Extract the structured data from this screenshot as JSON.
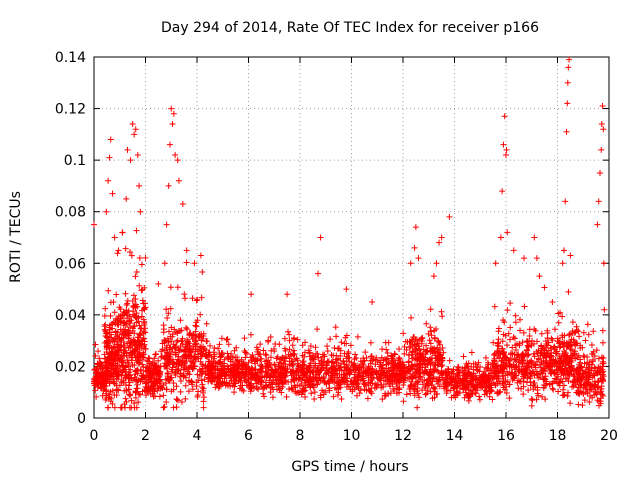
{
  "chart_data": {
    "type": "scatter",
    "title": "Day 294 of 2014, Rate Of TEC Index for receiver p166",
    "xlabel": "GPS time / hours",
    "ylabel": "ROTI / TECUs",
    "xlim": [
      0,
      20
    ],
    "ylim": [
      0,
      0.14
    ],
    "xticks": [
      "0",
      "2",
      "4",
      "6",
      "8",
      "10",
      "12",
      "14",
      "16",
      "18",
      "20"
    ],
    "yticks": [
      "0",
      "0.02",
      "0.04",
      "0.06",
      "0.08",
      "0.1",
      "0.12",
      "0.14"
    ],
    "grid": true,
    "marker": "+",
    "series_color": "#ff0000",
    "series": [
      {
        "name": "ROTI",
        "segments": [
          {
            "x_start": 0.0,
            "x_end": 0.4,
            "base": 0.016,
            "spread": 0.006,
            "count": 90
          },
          {
            "x_start": 0.4,
            "x_end": 1.0,
            "base": 0.022,
            "spread": 0.016,
            "count": 220
          },
          {
            "x_start": 1.0,
            "x_end": 2.0,
            "base": 0.025,
            "spread": 0.02,
            "count": 320
          },
          {
            "x_start": 2.0,
            "x_end": 2.6,
            "base": 0.016,
            "spread": 0.007,
            "count": 130
          },
          {
            "x_start": 2.6,
            "x_end": 4.4,
            "base": 0.022,
            "spread": 0.015,
            "count": 330
          },
          {
            "x_start": 4.4,
            "x_end": 6.0,
            "base": 0.018,
            "spread": 0.007,
            "count": 280
          },
          {
            "x_start": 6.0,
            "x_end": 12.0,
            "base": 0.017,
            "spread": 0.008,
            "count": 900
          },
          {
            "x_start": 12.0,
            "x_end": 13.6,
            "base": 0.02,
            "spread": 0.012,
            "count": 320
          },
          {
            "x_start": 13.6,
            "x_end": 15.5,
            "base": 0.014,
            "spread": 0.006,
            "count": 280
          },
          {
            "x_start": 15.5,
            "x_end": 18.0,
            "base": 0.02,
            "spread": 0.012,
            "count": 420
          },
          {
            "x_start": 18.0,
            "x_end": 18.7,
            "base": 0.022,
            "spread": 0.012,
            "count": 160
          },
          {
            "x_start": 18.7,
            "x_end": 19.8,
            "base": 0.016,
            "spread": 0.01,
            "count": 200
          }
        ],
        "spikes": [
          {
            "x": 0.0,
            "y": 0.075
          },
          {
            "x": 0.48,
            "y": 0.08
          },
          {
            "x": 0.55,
            "y": 0.092
          },
          {
            "x": 0.6,
            "y": 0.101
          },
          {
            "x": 0.65,
            "y": 0.108
          },
          {
            "x": 0.72,
            "y": 0.087
          },
          {
            "x": 0.8,
            "y": 0.07
          },
          {
            "x": 0.95,
            "y": 0.065
          },
          {
            "x": 1.1,
            "y": 0.072
          },
          {
            "x": 1.25,
            "y": 0.085
          },
          {
            "x": 1.3,
            "y": 0.104
          },
          {
            "x": 1.42,
            "y": 0.1
          },
          {
            "x": 1.5,
            "y": 0.114
          },
          {
            "x": 1.56,
            "y": 0.11
          },
          {
            "x": 1.62,
            "y": 0.112
          },
          {
            "x": 1.7,
            "y": 0.102
          },
          {
            "x": 1.75,
            "y": 0.09
          },
          {
            "x": 1.8,
            "y": 0.08
          },
          {
            "x": 2.5,
            "y": 0.052
          },
          {
            "x": 2.75,
            "y": 0.06
          },
          {
            "x": 2.82,
            "y": 0.075
          },
          {
            "x": 2.9,
            "y": 0.09
          },
          {
            "x": 2.95,
            "y": 0.106
          },
          {
            "x": 3.0,
            "y": 0.12
          },
          {
            "x": 3.05,
            "y": 0.114
          },
          {
            "x": 3.1,
            "y": 0.118
          },
          {
            "x": 3.15,
            "y": 0.102
          },
          {
            "x": 3.25,
            "y": 0.1
          },
          {
            "x": 3.3,
            "y": 0.092
          },
          {
            "x": 3.45,
            "y": 0.083
          },
          {
            "x": 3.6,
            "y": 0.065
          },
          {
            "x": 3.9,
            "y": 0.06
          },
          {
            "x": 4.15,
            "y": 0.063
          },
          {
            "x": 6.1,
            "y": 0.048
          },
          {
            "x": 7.5,
            "y": 0.048
          },
          {
            "x": 8.7,
            "y": 0.056
          },
          {
            "x": 8.8,
            "y": 0.07
          },
          {
            "x": 9.8,
            "y": 0.05
          },
          {
            "x": 10.8,
            "y": 0.045
          },
          {
            "x": 12.3,
            "y": 0.06
          },
          {
            "x": 12.45,
            "y": 0.066
          },
          {
            "x": 12.5,
            "y": 0.074
          },
          {
            "x": 12.6,
            "y": 0.062
          },
          {
            "x": 13.2,
            "y": 0.055
          },
          {
            "x": 13.3,
            "y": 0.06
          },
          {
            "x": 13.4,
            "y": 0.068
          },
          {
            "x": 13.5,
            "y": 0.07
          },
          {
            "x": 13.8,
            "y": 0.078
          },
          {
            "x": 15.6,
            "y": 0.06
          },
          {
            "x": 15.8,
            "y": 0.07
          },
          {
            "x": 15.85,
            "y": 0.088
          },
          {
            "x": 15.9,
            "y": 0.106
          },
          {
            "x": 15.95,
            "y": 0.117
          },
          {
            "x": 16.0,
            "y": 0.102
          },
          {
            "x": 16.02,
            "y": 0.104
          },
          {
            "x": 16.05,
            "y": 0.072
          },
          {
            "x": 16.3,
            "y": 0.065
          },
          {
            "x": 16.7,
            "y": 0.062
          },
          {
            "x": 17.1,
            "y": 0.07
          },
          {
            "x": 17.2,
            "y": 0.062
          },
          {
            "x": 17.3,
            "y": 0.055
          },
          {
            "x": 17.8,
            "y": 0.045
          },
          {
            "x": 18.2,
            "y": 0.06
          },
          {
            "x": 18.25,
            "y": 0.065
          },
          {
            "x": 18.3,
            "y": 0.084
          },
          {
            "x": 18.35,
            "y": 0.111
          },
          {
            "x": 18.38,
            "y": 0.122
          },
          {
            "x": 18.4,
            "y": 0.13
          },
          {
            "x": 18.42,
            "y": 0.136
          },
          {
            "x": 18.45,
            "y": 0.139
          },
          {
            "x": 18.5,
            "y": 0.063
          },
          {
            "x": 19.55,
            "y": 0.075
          },
          {
            "x": 19.6,
            "y": 0.084
          },
          {
            "x": 19.65,
            "y": 0.095
          },
          {
            "x": 19.7,
            "y": 0.104
          },
          {
            "x": 19.72,
            "y": 0.114
          },
          {
            "x": 19.75,
            "y": 0.121
          },
          {
            "x": 19.78,
            "y": 0.112
          },
          {
            "x": 19.8,
            "y": 0.06
          },
          {
            "x": 19.82,
            "y": 0.042
          }
        ]
      }
    ]
  }
}
